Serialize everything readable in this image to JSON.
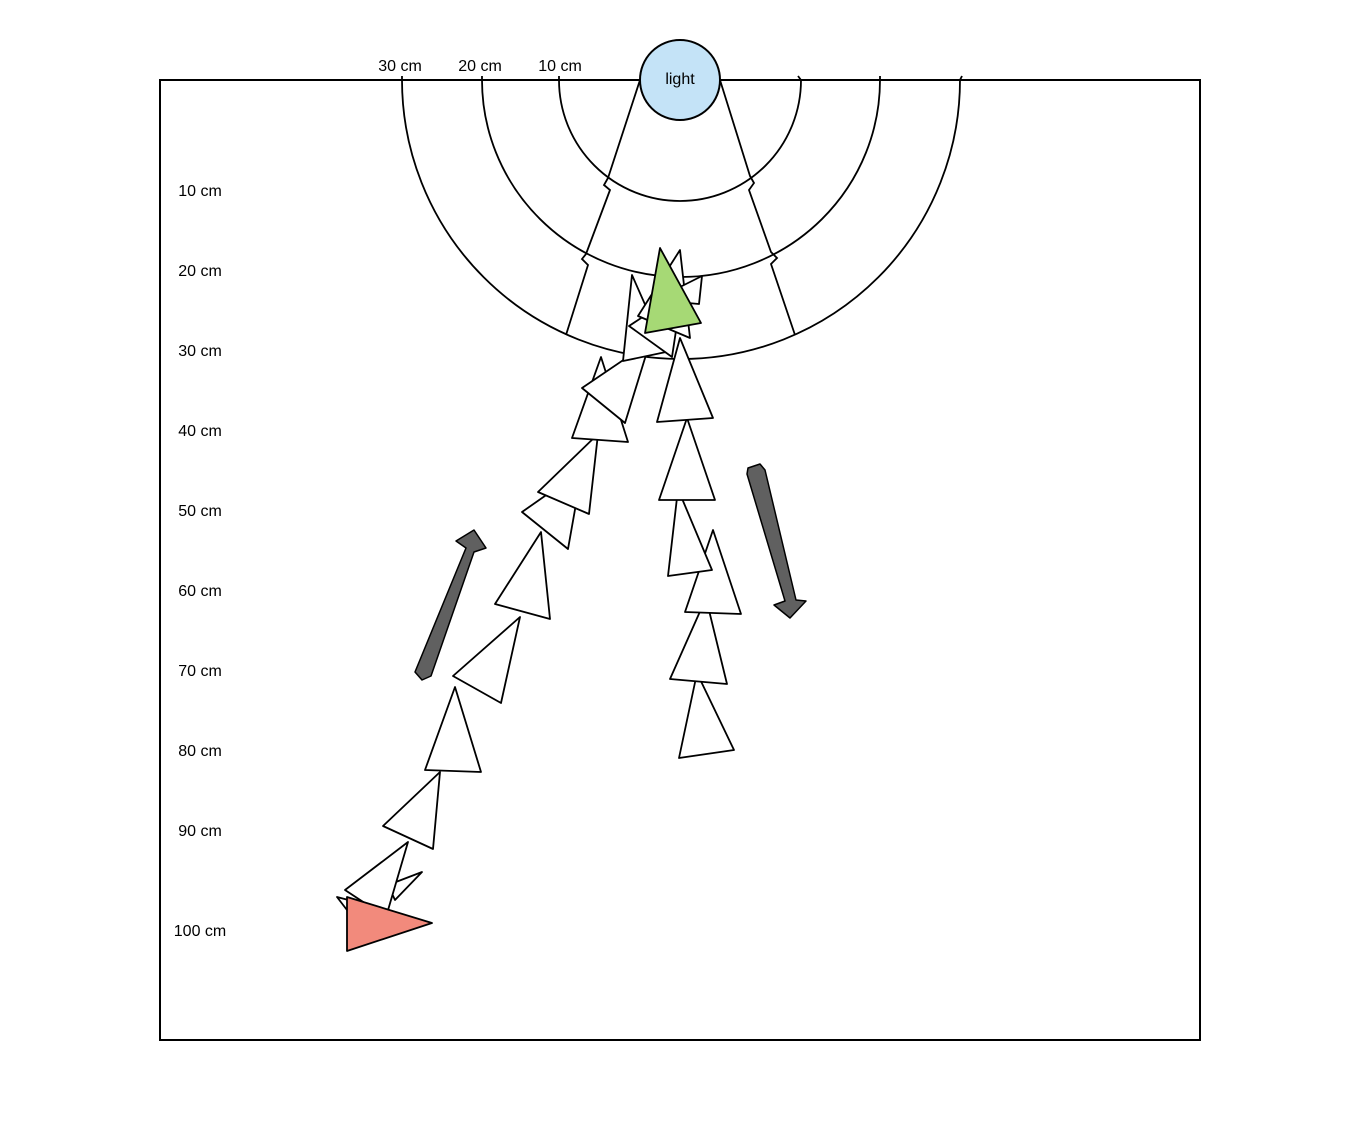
{
  "light": {
    "label": "light",
    "fill": "#c4e3f7"
  },
  "top_labels": [
    "30 cm",
    "20 cm",
    "10 cm"
  ],
  "side_labels": [
    "10 cm",
    "20 cm",
    "30 cm",
    "40 cm",
    "50 cm",
    "60 cm",
    "70 cm",
    "80 cm",
    "90 cm",
    "100 cm"
  ],
  "colors": {
    "frame_stroke": "#000000",
    "path_fill": "#ffffff",
    "start_fill": "#f28a7c",
    "end_fill": "#a6d975",
    "arrow_fill": "#606060"
  }
}
